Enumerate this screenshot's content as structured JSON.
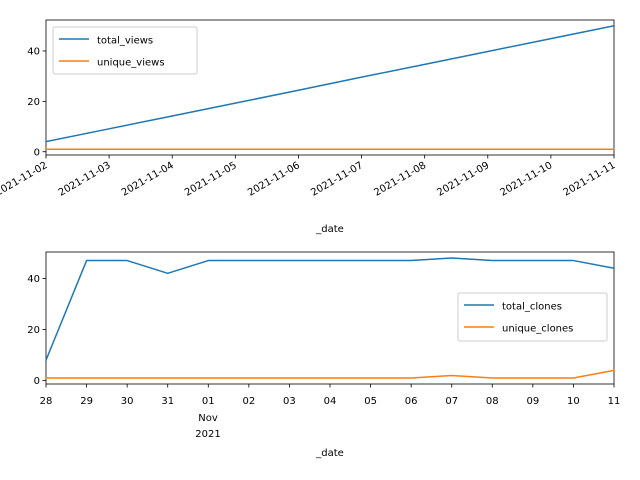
{
  "chart_data": [
    {
      "type": "line",
      "xlabel": "_date",
      "ylabel": "",
      "x": [
        "2021-11-02",
        "2021-11-03",
        "2021-11-04",
        "2021-11-05",
        "2021-11-06",
        "2021-11-07",
        "2021-11-08",
        "2021-11-09",
        "2021-11-10",
        "2021-11-11"
      ],
      "xlim": [
        "2021-11-02",
        "2021-11-11"
      ],
      "ylim": [
        -1.3,
        52.3
      ],
      "yticks": [
        0,
        20,
        40
      ],
      "xtick_labels": [
        "2021-11-02",
        "2021-11-03",
        "2021-11-04",
        "2021-11-05",
        "2021-11-06",
        "2021-11-07",
        "2021-11-08",
        "2021-11-09",
        "2021-11-10",
        "2021-11-11"
      ],
      "series": [
        {
          "name": "total_views",
          "color": "#1f77b4",
          "values": [
            4,
            9.1,
            14.2,
            19.3,
            24.4,
            29.6,
            34.7,
            39.8,
            44.9,
            50
          ]
        },
        {
          "name": "unique_views",
          "color": "#ff7f0e",
          "values": [
            1,
            1,
            1,
            1,
            1,
            1,
            1,
            1,
            1,
            1
          ]
        }
      ],
      "legend": "top-left",
      "grid": false
    },
    {
      "type": "line",
      "xlabel": "_date",
      "ylabel": "",
      "x": [
        "2021-10-28",
        "2021-10-29",
        "2021-10-30",
        "2021-10-31",
        "2021-11-01",
        "2021-11-02",
        "2021-11-03",
        "2021-11-04",
        "2021-11-05",
        "2021-11-06",
        "2021-11-07",
        "2021-11-08",
        "2021-11-09",
        "2021-11-10",
        "2021-11-11"
      ],
      "xlim": [
        "2021-10-28",
        "2021-11-11"
      ],
      "ylim": [
        -1.35,
        50.35
      ],
      "yticks": [
        0,
        20,
        40
      ],
      "xtick_labels": [
        "28",
        "29",
        "30",
        "31",
        "01",
        "02",
        "03",
        "04",
        "05",
        "06",
        "07",
        "08",
        "09",
        "10",
        "11"
      ],
      "xtick_sublabel": "Nov",
      "xtick_year": "2021",
      "series": [
        {
          "name": "total_clones",
          "color": "#1f77b4",
          "values": [
            8,
            47,
            47,
            42,
            47,
            47,
            47,
            47,
            47,
            47,
            48,
            47,
            47,
            47,
            44
          ]
        },
        {
          "name": "unique_clones",
          "color": "#ff7f0e",
          "values": [
            1,
            1,
            1,
            1,
            1,
            1,
            1,
            1,
            1,
            1,
            2,
            1,
            1,
            1,
            4
          ]
        }
      ],
      "legend": "center-right",
      "grid": false
    }
  ]
}
